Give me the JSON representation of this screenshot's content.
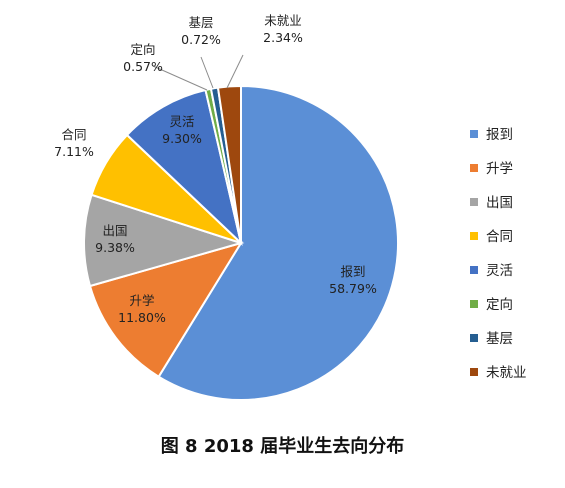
{
  "chart_data": {
    "type": "pie",
    "title": "",
    "start_angle_deg": 0,
    "direction": "clockwise",
    "legend_position": "right",
    "slices": [
      {
        "name": "报到",
        "value": 58.79,
        "label": "58.79%",
        "color": "#5B8FD6"
      },
      {
        "name": "升学",
        "value": 11.8,
        "label": "11.80%",
        "color": "#ED7D31"
      },
      {
        "name": "出国",
        "value": 9.38,
        "label": "9.38%",
        "color": "#A5A5A5"
      },
      {
        "name": "合同",
        "value": 7.11,
        "label": "7.11%",
        "color": "#FFC000"
      },
      {
        "name": "灵活",
        "value": 9.3,
        "label": "9.30%",
        "color": "#4472C4"
      },
      {
        "name": "定向",
        "value": 0.57,
        "label": "0.57%",
        "color": "#70AD47"
      },
      {
        "name": "基层",
        "value": 0.72,
        "label": "0.72%",
        "color": "#255E91"
      },
      {
        "name": "未就业",
        "value": 2.34,
        "label": "2.34%",
        "color": "#9E480E"
      }
    ]
  },
  "caption": "图 8 2018 届毕业生去向分布"
}
